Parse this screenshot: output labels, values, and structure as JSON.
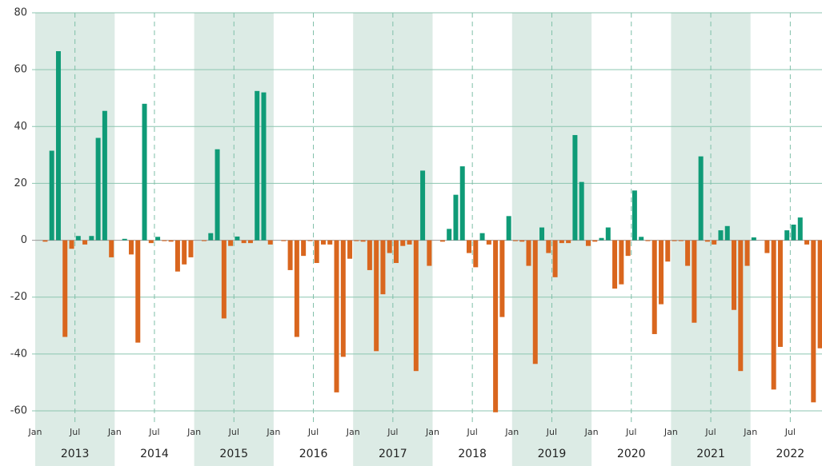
{
  "chart_data": {
    "type": "bar",
    "positive_color": "#0f9b77",
    "negative_color": "#d9661e",
    "band_color": "#dcebe5",
    "grid": true,
    "ylim": [
      -60,
      80
    ],
    "yticks": [
      -60,
      -40,
      -20,
      0,
      20,
      40,
      60,
      80
    ],
    "groups": [
      {
        "label": "2013",
        "ticks": [
          "Jan",
          "Jul"
        ],
        "values": [
          0,
          -0.5,
          31.5,
          66.5,
          -34,
          -3,
          1.5,
          -1.5,
          1.5,
          36,
          45.5,
          -6
        ]
      },
      {
        "label": "2014",
        "ticks": [
          "Jan",
          "Jul"
        ],
        "values": [
          0,
          0.5,
          -5,
          -36,
          48,
          -1,
          1.2,
          -0.3,
          -0.5,
          -11,
          -8.5,
          -6
        ]
      },
      {
        "label": "2015",
        "ticks": [
          "Jan",
          "Jul"
        ],
        "values": [
          0,
          -0.3,
          2.5,
          32,
          -27.5,
          -2,
          1.3,
          -1,
          -1,
          52.5,
          52,
          -1.5
        ]
      },
      {
        "label": "2016",
        "ticks": [
          "Jan",
          "Jul"
        ],
        "values": [
          0,
          -0.3,
          -10.5,
          -34,
          -5.5,
          -0.3,
          -8,
          -1.5,
          -1.5,
          -53.5,
          -41,
          -6.5
        ]
      },
      {
        "label": "2017",
        "ticks": [
          "Jan",
          "Jul"
        ],
        "values": [
          -0.3,
          -0.5,
          -10.5,
          -39,
          -19,
          -4.5,
          -8,
          -2,
          -1.5,
          -46,
          24.5,
          -9
        ]
      },
      {
        "label": "2018",
        "ticks": [
          "Jan",
          "Jul"
        ],
        "values": [
          0,
          -0.5,
          4,
          16,
          26,
          -4.5,
          -9.5,
          2.5,
          -1.5,
          -60.5,
          -27,
          8.5
        ]
      },
      {
        "label": "2019",
        "ticks": [
          "Jan",
          "Jul"
        ],
        "values": [
          -0.3,
          -0.5,
          -9,
          -43.5,
          4.5,
          -4.5,
          -13,
          -1,
          -1,
          37,
          20.5,
          -2
        ]
      },
      {
        "label": "2020",
        "ticks": [
          "Jan",
          "Jul"
        ],
        "values": [
          -0.5,
          0.8,
          4.5,
          -17,
          -15.5,
          -5.5,
          17.5,
          1.2,
          -0.3,
          -33,
          -22.5,
          -7.5
        ]
      },
      {
        "label": "2021",
        "ticks": [
          "Jan",
          "Jul"
        ],
        "values": [
          -0.3,
          -0.3,
          -9,
          -29,
          29.5,
          -0.5,
          -1.5,
          3.5,
          5,
          -24.5,
          -46,
          -9
        ]
      },
      {
        "label": "2022",
        "ticks": [
          "Jan",
          "Jul"
        ],
        "values": [
          1,
          0,
          -4.5,
          -52.5,
          -37.5,
          3.5,
          5.5,
          8,
          -1.5,
          -57,
          -38
        ]
      }
    ]
  }
}
